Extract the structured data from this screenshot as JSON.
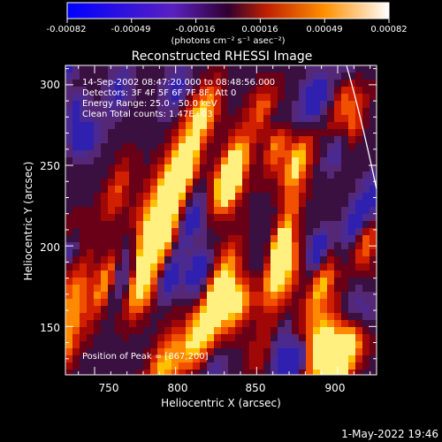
{
  "colorbar": {
    "ticks": [
      "-0.00082",
      "-0.00049",
      "-0.00016",
      "0.00016",
      "0.00049",
      "0.00082"
    ],
    "units": "(photons cm⁻² s⁻¹ asec⁻²)"
  },
  "image": {
    "title": "Reconstructed RHESSI Image",
    "info_lines": [
      "14-Sep-2002 08:47:20.000 to 08:48:56.000",
      "Detectors: 3F 4F 5F 6F 7F 8F, Att 0",
      "Energy Range: 25.0 - 50.0 keV",
      "Clean     Total counts: 1.47E+03"
    ],
    "peak_label": "Position of Peak = [867,200]",
    "peak_position": [
      867,
      200
    ]
  },
  "axes": {
    "xlabel": "Heliocentric X (arcsec)",
    "ylabel": "Heliocentric Y (arcsec)",
    "x_ticks": [
      "750",
      "800",
      "850",
      "900"
    ],
    "y_ticks": [
      "150",
      "200",
      "250",
      "300"
    ],
    "x_range": [
      732,
      924
    ],
    "y_range": [
      120,
      312
    ]
  },
  "timestamp": "1-May-2022 19:46"
}
